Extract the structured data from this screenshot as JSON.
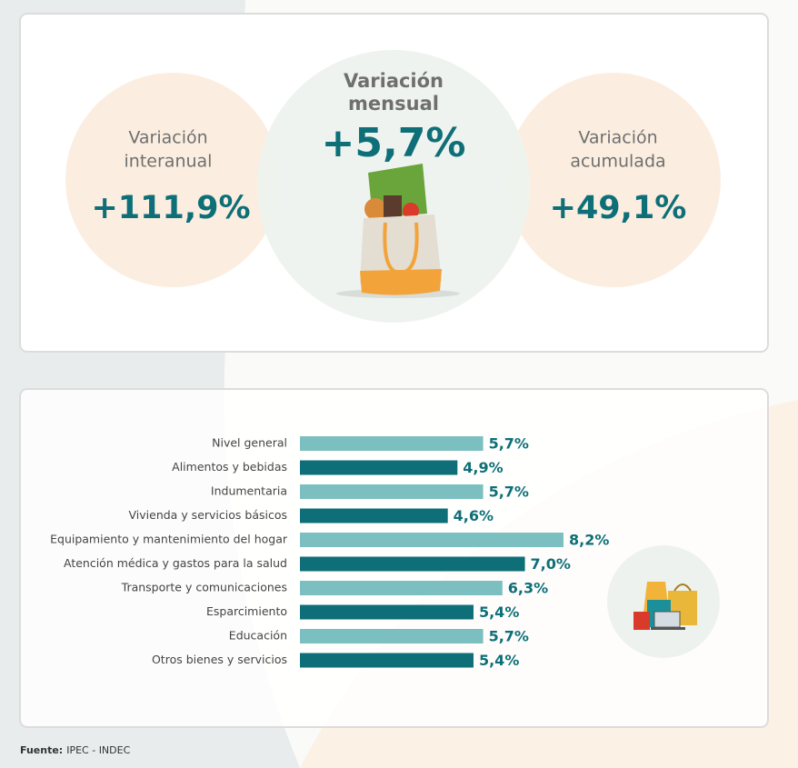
{
  "summary": [
    {
      "label_line1": "Variación",
      "label_line2": "interanual",
      "value": "+111,9%"
    },
    {
      "label_line1": "Variación",
      "label_line2": "mensual",
      "value": "+5,7%"
    },
    {
      "label_line1": "Variación",
      "label_line2": "acumulada",
      "value": "+49,1%"
    }
  ],
  "chart_data": {
    "type": "hbar",
    "categories": [
      "Nivel general",
      "Alimentos y bebidas",
      "Indumentaria",
      "Vivienda y servicios básicos",
      "Equipamiento y mantenimiento del hogar",
      "Atención médica y gastos para la salud",
      "Transporte y comunicaciones",
      "Esparcimiento",
      "Educación",
      "Otros bienes y servicios"
    ],
    "values": [
      5.7,
      4.9,
      5.7,
      4.6,
      8.2,
      7.0,
      6.3,
      5.4,
      5.7,
      5.4
    ],
    "value_labels": [
      "5,7%",
      "4,9%",
      "5,7%",
      "4,6%",
      "8,2%",
      "7,0%",
      "6,3%",
      "5,4%",
      "5,7%",
      "5,4%"
    ],
    "colors": [
      "#7bbfc0",
      "#0e6f78",
      "#7bbfc0",
      "#0e6f78",
      "#7bbfc0",
      "#0e6f78",
      "#7bbfc0",
      "#0e6f78",
      "#7bbfc0",
      "#0e6f78"
    ]
  },
  "footer": {
    "label": "Fuente:",
    "text": "IPEC - INDEC"
  }
}
